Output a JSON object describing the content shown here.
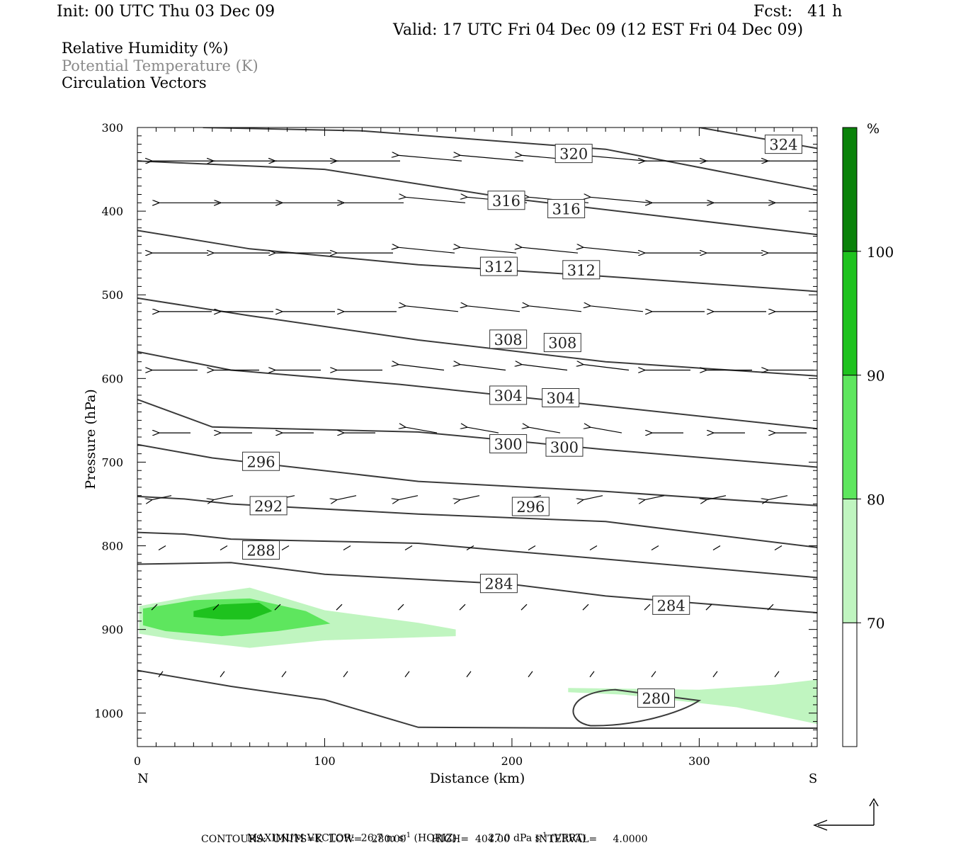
{
  "header": {
    "init": "Init: 00 UTC Thu 03 Dec 09",
    "fcst": "Fcst:   41 h",
    "valid": "Valid: 17 UTC Fri 04 Dec 09 (12 EST Fri 04 Dec 09)"
  },
  "legend_text": {
    "line1": "Relative Humidity (%)",
    "line2": "Potential Temperature (K)",
    "line3": "Circulation Vectors"
  },
  "footer": {
    "line1": "MAXIMUM VECTOR:  26.7 m s",
    "line1_sup1": "-1",
    "line1_mid": " (HORIZ)          27.0 dPa s",
    "line1_sup2": "-1",
    "line1_end": " (VERT)",
    "line2": "CONTOURS:  UNITS=K  LOW=   280.00        HIGH=  404.00        INTERVAL=     4.0000"
  },
  "chart_data": {
    "type": "cross-section",
    "xlabel": "Distance (km)",
    "ylabel": "Pressure (hPa)",
    "xlim": [
      0,
      363
    ],
    "ylim": [
      1040,
      300
    ],
    "x_ticks": [
      "0",
      "100",
      "200",
      "300"
    ],
    "y_ticks": [
      "300",
      "400",
      "500",
      "600",
      "700",
      "800",
      "900",
      "1000"
    ],
    "x_end_labels": {
      "left": "N",
      "right": "S"
    },
    "colorbar": {
      "unit": "%",
      "levels": [
        "70",
        "80",
        "90",
        "100"
      ],
      "colors": [
        "#ffffff",
        "#c0f5c0",
        "#5ee65e",
        "#1ec21e",
        "#0a820a"
      ]
    },
    "theta_labels": [
      "324",
      "320",
      "316",
      "316",
      "312",
      "312",
      "308",
      "308",
      "304",
      "304",
      "300",
      "300",
      "296",
      "296",
      "292",
      "288",
      "284",
      "284",
      "280"
    ],
    "theta_lines": [
      {
        "value": 320,
        "points": [
          [
            35,
            300
          ],
          [
            120,
            304
          ],
          [
            250,
            326
          ],
          [
            363,
            375
          ]
        ]
      },
      {
        "value": 324,
        "points": [
          [
            300,
            300
          ],
          [
            363,
            325
          ]
        ]
      },
      {
        "value": 316,
        "points": [
          [
            0,
            340
          ],
          [
            100,
            350
          ],
          [
            200,
            385
          ],
          [
            363,
            428
          ]
        ]
      },
      {
        "value": 312,
        "points": [
          [
            0,
            423
          ],
          [
            60,
            445
          ],
          [
            150,
            464
          ],
          [
            250,
            478
          ],
          [
            363,
            496
          ]
        ]
      },
      {
        "value": 308,
        "points": [
          [
            0,
            504
          ],
          [
            60,
            525
          ],
          [
            150,
            554
          ],
          [
            250,
            580
          ],
          [
            363,
            597
          ]
        ]
      },
      {
        "value": 304,
        "points": [
          [
            0,
            568
          ],
          [
            50,
            590
          ],
          [
            140,
            607
          ],
          [
            250,
            633
          ],
          [
            363,
            660
          ]
        ]
      },
      {
        "value": 300,
        "points": [
          [
            0,
            625
          ],
          [
            40,
            658
          ],
          [
            150,
            664
          ],
          [
            250,
            685
          ],
          [
            363,
            706
          ]
        ]
      },
      {
        "value": 296,
        "points": [
          [
            0,
            679
          ],
          [
            40,
            695
          ],
          [
            150,
            723
          ],
          [
            250,
            735
          ],
          [
            363,
            752
          ]
        ]
      },
      {
        "value": 292,
        "points": [
          [
            0,
            741
          ],
          [
            25,
            744
          ],
          [
            50,
            750
          ],
          [
            150,
            762
          ],
          [
            250,
            771
          ],
          [
            363,
            802
          ]
        ]
      },
      {
        "value": 288,
        "points": [
          [
            0,
            784
          ],
          [
            25,
            786
          ],
          [
            50,
            792
          ],
          [
            150,
            797
          ],
          [
            250,
            816
          ],
          [
            363,
            838
          ]
        ]
      },
      {
        "value": 284,
        "points": [
          [
            0,
            822
          ],
          [
            50,
            820
          ],
          [
            100,
            834
          ],
          [
            200,
            846
          ],
          [
            250,
            860
          ],
          [
            363,
            880
          ]
        ]
      },
      {
        "value": 280,
        "points": [
          [
            0,
            949
          ],
          [
            50,
            968
          ],
          [
            100,
            984
          ],
          [
            150,
            1017
          ],
          [
            250,
            1018
          ],
          [
            363,
            1018
          ]
        ]
      }
    ],
    "rh_regions": [
      {
        "level": "70-80",
        "points": [
          [
            1,
            872
          ],
          [
            30,
            860
          ],
          [
            60,
            850
          ],
          [
            100,
            877
          ],
          [
            150,
            892
          ],
          [
            170,
            900
          ],
          [
            170,
            908
          ],
          [
            100,
            913
          ],
          [
            60,
            922
          ],
          [
            20,
            912
          ],
          [
            1,
            905
          ]
        ]
      },
      {
        "level": "70-80",
        "points": [
          [
            230,
            970
          ],
          [
            300,
            972
          ],
          [
            340,
            966
          ],
          [
            363,
            960
          ],
          [
            363,
            1013
          ],
          [
            320,
            993
          ],
          [
            260,
            978
          ],
          [
            230,
            975
          ]
        ]
      },
      {
        "level": "80-90",
        "points": [
          [
            3,
            875
          ],
          [
            30,
            865
          ],
          [
            60,
            863
          ],
          [
            90,
            878
          ],
          [
            103,
            893
          ],
          [
            75,
            902
          ],
          [
            45,
            908
          ],
          [
            15,
            902
          ],
          [
            3,
            895
          ]
        ]
      },
      {
        "level": "90-100",
        "points": [
          [
            30,
            878
          ],
          [
            45,
            870
          ],
          [
            65,
            868
          ],
          [
            72,
            878
          ],
          [
            60,
            888
          ],
          [
            45,
            888
          ],
          [
            30,
            885
          ]
        ]
      }
    ],
    "wind_arrows_hpa": [
      340,
      390,
      450,
      520,
      590,
      665,
      740,
      800,
      870,
      950
    ]
  }
}
